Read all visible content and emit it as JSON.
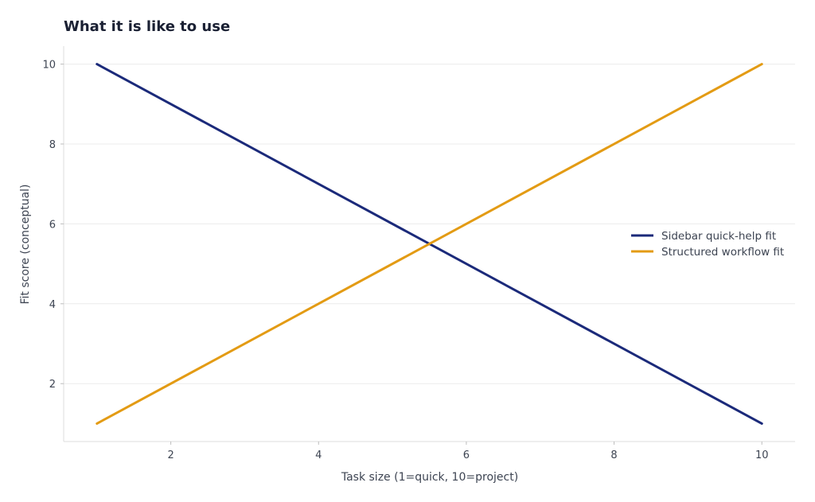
{
  "chart_data": {
    "type": "line",
    "title": "What it is like to use",
    "xlabel": "Task size (1=quick, 10=project)",
    "ylabel": "Fit score (conceptual)",
    "xlim": [
      0.55,
      10.45
    ],
    "ylim": [
      0.55,
      10.45
    ],
    "x_ticks": [
      2,
      4,
      6,
      8,
      10
    ],
    "y_ticks": [
      2,
      4,
      6,
      8,
      10
    ],
    "grid": "horizontal",
    "legend_position": "right",
    "series": [
      {
        "name": "Sidebar quick-help fit",
        "color": "#1b2a7a",
        "x": [
          1,
          10
        ],
        "y": [
          10,
          1
        ]
      },
      {
        "name": "Structured workflow fit",
        "color": "#e39b14",
        "x": [
          1,
          10
        ],
        "y": [
          1,
          10
        ]
      }
    ]
  }
}
